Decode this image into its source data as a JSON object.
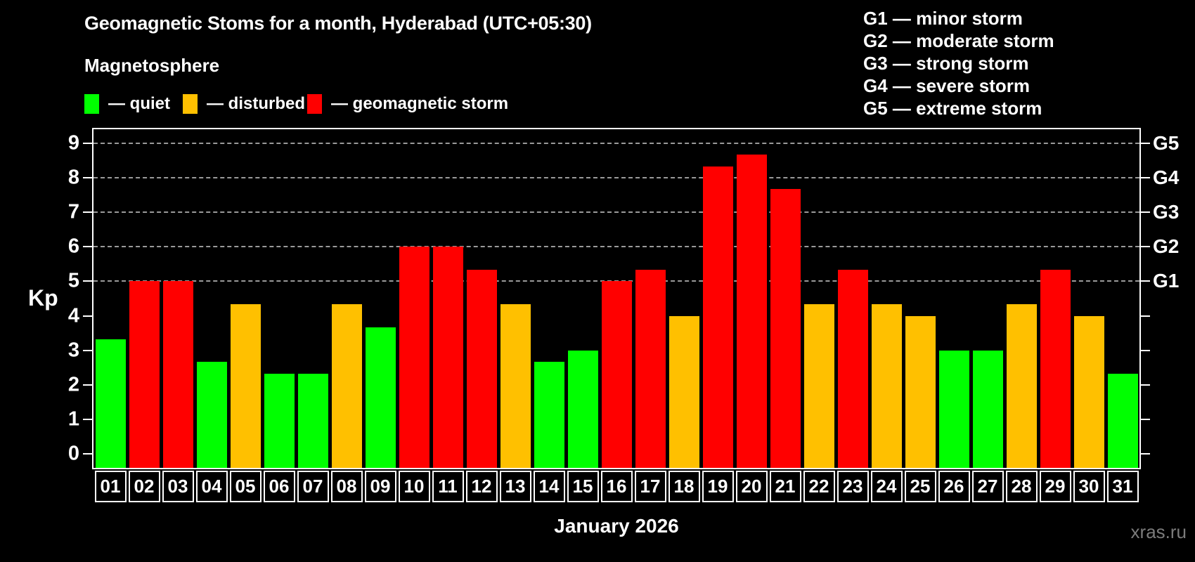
{
  "page": {
    "title": "Geomagnetic Stoms for a month, Hyderabad (UTC+05:30)",
    "subtitle": "Magnetosphere",
    "kp_label": "Kp",
    "month_label": "January 2026",
    "watermark": "xras.ru"
  },
  "legend": {
    "items": [
      {
        "key": "quiet",
        "label": "— quiet",
        "color": "#00ff00"
      },
      {
        "key": "disturbed",
        "label": "— disturbed",
        "color": "#ffc000"
      },
      {
        "key": "storm",
        "label": "— geomagnetic storm",
        "color": "#ff0000"
      }
    ]
  },
  "g_scale_legend": {
    "lines": [
      "G1 — minor storm",
      "G2 — moderate storm",
      "G3 — strong storm",
      "G4 — severe storm",
      "G5 — extreme storm"
    ]
  },
  "colors": {
    "quiet": "#00ff00",
    "disturbed": "#ffc000",
    "storm": "#ff0000",
    "grid": "#9a9a9a",
    "axis": "#ffffff",
    "watermark": "#7b7b7b"
  },
  "chart_data": {
    "type": "bar",
    "title": "Geomagnetic Stoms for a month, Hyderabad (UTC+05:30)",
    "xlabel": "January 2026",
    "ylabel": "Kp",
    "ylim": [
      -0.4,
      9.4
    ],
    "grid": "horizontal dashed lines at Kp 5-9 only",
    "legend_position": "top-left",
    "categories": [
      "01",
      "02",
      "03",
      "04",
      "05",
      "06",
      "07",
      "08",
      "09",
      "10",
      "11",
      "12",
      "13",
      "14",
      "15",
      "16",
      "17",
      "18",
      "19",
      "20",
      "21",
      "22",
      "23",
      "24",
      "25",
      "26",
      "27",
      "28",
      "29",
      "30",
      "31"
    ],
    "values": [
      3.33,
      5.0,
      5.0,
      2.67,
      4.33,
      2.33,
      2.33,
      4.33,
      3.67,
      6.0,
      6.0,
      5.33,
      4.33,
      2.67,
      3.0,
      5.0,
      5.33,
      4.0,
      8.33,
      8.67,
      7.67,
      4.33,
      5.33,
      4.33,
      4.0,
      3.0,
      3.0,
      4.33,
      5.33,
      4.0,
      2.33
    ],
    "statuses": [
      "quiet",
      "storm",
      "storm",
      "quiet",
      "disturbed",
      "quiet",
      "quiet",
      "disturbed",
      "quiet",
      "storm",
      "storm",
      "storm",
      "disturbed",
      "quiet",
      "quiet",
      "storm",
      "storm",
      "disturbed",
      "storm",
      "storm",
      "storm",
      "disturbed",
      "storm",
      "disturbed",
      "disturbed",
      "quiet",
      "quiet",
      "disturbed",
      "storm",
      "disturbed",
      "quiet"
    ],
    "left_ticks": [
      0,
      1,
      2,
      3,
      4,
      5,
      6,
      7,
      8,
      9
    ],
    "gridlines": [
      5,
      6,
      7,
      8,
      9
    ],
    "right_axis_labels": [
      {
        "value": 5,
        "label": "G1"
      },
      {
        "value": 6,
        "label": "G2"
      },
      {
        "value": 7,
        "label": "G3"
      },
      {
        "value": 8,
        "label": "G4"
      },
      {
        "value": 9,
        "label": "G5"
      }
    ]
  }
}
